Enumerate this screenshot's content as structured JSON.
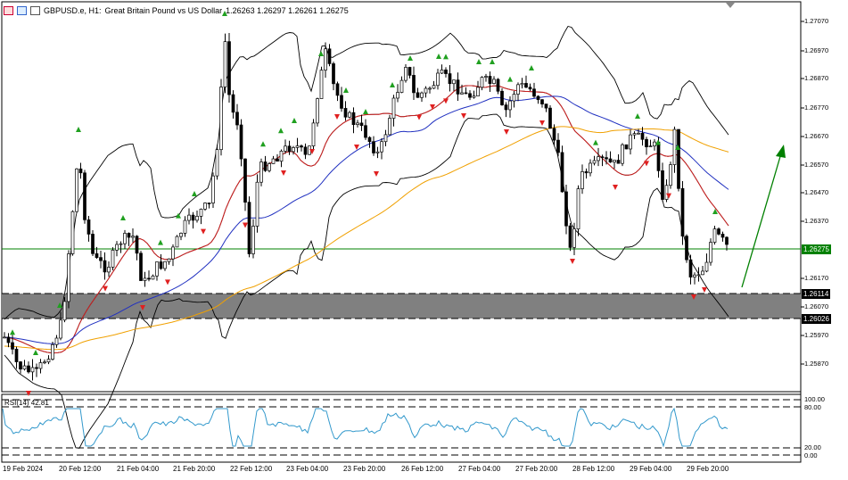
{
  "header": {
    "symbol": "GBPUSD.e, H1:",
    "description": "Great Britain Pound vs US Dollar",
    "ohlc": "1.26263 1.26297 1.26261 1.26275"
  },
  "price_scale": [
    "1.27070",
    "1.26970",
    "1.26870",
    "1.26770",
    "1.26670",
    "1.26570",
    "1.26470",
    "1.26370",
    "1.26170",
    "1.26070",
    "1.25970",
    "1.25870"
  ],
  "price_tags": {
    "current": "1.26275",
    "zone_top": "1.26114",
    "zone_bottom": "1.26026"
  },
  "rsi": {
    "label": "RSI(14) 42.81",
    "scale": [
      "100.00",
      "80.00",
      "20.00",
      "0.00"
    ]
  },
  "time_axis": [
    "19 Feb 2024",
    "20 Feb 12:00",
    "21 Feb 04:00",
    "21 Feb 20:00",
    "22 Feb 12:00",
    "23 Feb 04:00",
    "23 Feb 20:00",
    "26 Feb 12:00",
    "27 Feb 04:00",
    "27 Feb 20:00",
    "28 Feb 12:00",
    "29 Feb 04:00",
    "29 Feb 20:00"
  ],
  "colors": {
    "bull_candle": "#000000",
    "bear_candle": "#000000",
    "ma_red": "#d02020",
    "ma_blue": "#2030c0",
    "ma_orange": "#f0a000",
    "bands": "#000000",
    "zone": "#808080",
    "current_line": "#008000",
    "arrow_up": "#20a020",
    "arrow_down": "#e02020",
    "rsi_line": "#3399cc"
  }
}
